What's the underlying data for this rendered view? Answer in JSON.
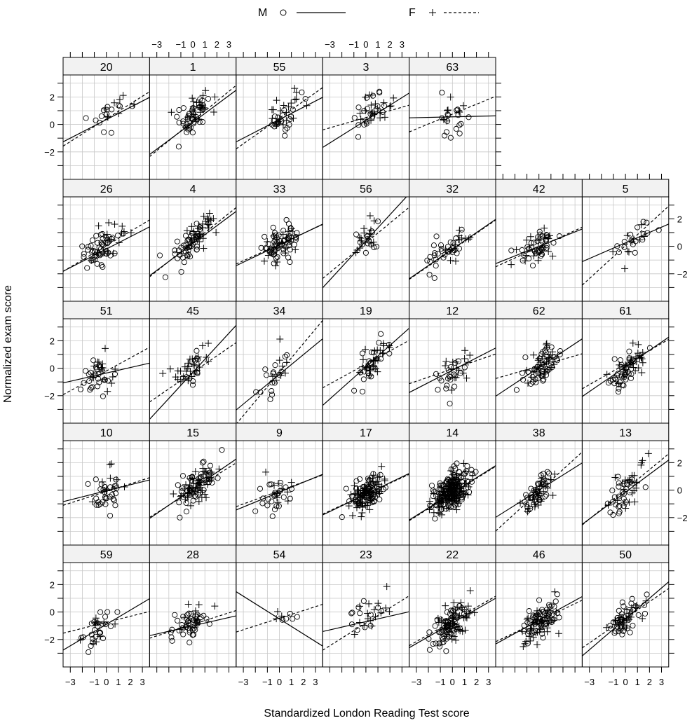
{
  "chart_data": {
    "type": "scatter",
    "layout": "trellis 7 columns x 5 rows; first row has 5 panels",
    "xlabel": "Standardized London Reading Test score",
    "ylabel": "Normalized exam score",
    "xlim": [
      -3.6,
      3.6
    ],
    "ylim": [
      -4.0,
      3.6
    ],
    "x_ticks": [
      -3,
      -1,
      0,
      1,
      2,
      3
    ],
    "x_tick_labels": [
      "−3",
      "−1",
      "0",
      "1",
      "2",
      "3"
    ],
    "y_ticks": [
      -2,
      0,
      2
    ],
    "y_tick_labels": [
      "−2",
      "0",
      "2"
    ],
    "grid": true,
    "legend": {
      "position": "top",
      "items": [
        {
          "label": "M",
          "symbol": "circle",
          "line": "solid"
        },
        {
          "label": "F",
          "symbol": "plus",
          "line": "dashed"
        }
      ]
    },
    "panels": [
      {
        "label": "20",
        "row": 0,
        "col": 0,
        "mLine": [
          0.35,
          0.45
        ],
        "fLine": [
          0.4,
          0.55
        ],
        "mCenter": [
          0.2,
          0.6
        ],
        "fCenter": [
          0.8,
          1.1
        ],
        "mN": 14,
        "fN": 8
      },
      {
        "label": "1",
        "row": 0,
        "col": 1,
        "mLine": [
          0.15,
          0.65
        ],
        "fLine": [
          0.25,
          0.72
        ],
        "mCenter": [
          -0.2,
          0.3
        ],
        "fCenter": [
          0.3,
          0.8
        ],
        "mN": 40,
        "fN": 22
      },
      {
        "label": "55",
        "row": 0,
        "col": 2,
        "mLine": [
          0.35,
          0.45
        ],
        "fLine": [
          0.45,
          0.62
        ],
        "mCenter": [
          0.3,
          0.5
        ],
        "fCenter": [
          0.6,
          1.1
        ],
        "mN": 22,
        "fN": 20
      },
      {
        "label": "3",
        "row": 0,
        "col": 3,
        "mLine": [
          0.3,
          0.55
        ],
        "fLine": [
          0.5,
          0.25
        ],
        "mCenter": [
          0.4,
          0.8
        ],
        "fCenter": [
          0.7,
          1.0
        ],
        "mN": 22,
        "fN": 20
      },
      {
        "label": "63",
        "row": 0,
        "col": 4,
        "mLine": [
          0.55,
          0.02
        ],
        "fLine": [
          0.75,
          0.36
        ],
        "mCenter": [
          0.2,
          0.5
        ],
        "fCenter": [
          0.4,
          0.8
        ],
        "mN": 16,
        "fN": 8
      },
      {
        "label": "26",
        "row": 1,
        "col": 0,
        "mLine": [
          -0.2,
          0.45
        ],
        "fLine": [
          0.05,
          0.52
        ],
        "mCenter": [
          -0.6,
          -0.2
        ],
        "fCenter": [
          0.2,
          0.2
        ],
        "mN": 50,
        "fN": 16
      },
      {
        "label": "4",
        "row": 1,
        "col": 1,
        "mLine": [
          0.2,
          0.65
        ],
        "fLine": [
          0.3,
          0.7
        ],
        "mCenter": [
          -0.2,
          0.2
        ],
        "fCenter": [
          0.4,
          0.8
        ],
        "mN": 50,
        "fN": 28
      },
      {
        "label": "33",
        "row": 1,
        "col": 2,
        "mLine": [
          0.1,
          0.42
        ],
        "fLine": [
          0.15,
          0.4
        ],
        "mCenter": [
          0.0,
          0.1
        ],
        "fCenter": [
          0.1,
          0.2
        ],
        "mN": 60,
        "fN": 20
      },
      {
        "label": "56",
        "row": 1,
        "col": 3,
        "mLine": [
          0.4,
          0.95
        ],
        "fLine": [
          0.25,
          0.72
        ],
        "mCenter": [
          0.2,
          0.3
        ],
        "fCenter": [
          0.2,
          0.6
        ],
        "mN": 14,
        "fN": 16
      },
      {
        "label": "32",
        "row": 1,
        "col": 4,
        "mLine": [
          -0.2,
          0.6
        ],
        "fLine": [
          -0.25,
          0.6
        ],
        "mCenter": [
          -0.6,
          -0.3
        ],
        "fCenter": [
          0.3,
          0.1
        ],
        "mN": 30,
        "fN": 14
      },
      {
        "label": "42",
        "row": 1,
        "col": 5,
        "mLine": [
          0.0,
          0.35
        ],
        "fLine": [
          -0.05,
          0.4
        ],
        "mCenter": [
          0.0,
          0.0
        ],
        "fCenter": [
          0.0,
          0.1
        ],
        "mN": 40,
        "fN": 18
      },
      {
        "label": "5",
        "row": 1,
        "col": 6,
        "mLine": [
          0.25,
          0.38
        ],
        "fLine": [
          0.05,
          0.8
        ],
        "mCenter": [
          0.5,
          0.5
        ],
        "fCenter": [
          0.6,
          0.4
        ],
        "mN": 16,
        "fN": 10
      },
      {
        "label": "51",
        "row": 2,
        "col": 0,
        "mLine": [
          -0.35,
          0.2
        ],
        "fLine": [
          -0.2,
          0.48
        ],
        "mCenter": [
          -0.8,
          -0.6
        ],
        "fCenter": [
          0.0,
          0.2
        ],
        "mN": 26,
        "fN": 16
      },
      {
        "label": "45",
        "row": 2,
        "col": 1,
        "mLine": [
          -0.3,
          0.95
        ],
        "fLine": [
          -0.3,
          0.6
        ],
        "mCenter": [
          -0.3,
          -0.5
        ],
        "fCenter": [
          -0.3,
          0.0
        ],
        "mN": 12,
        "fN": 30
      },
      {
        "label": "34",
        "row": 2,
        "col": 2,
        "mLine": [
          -0.45,
          0.72
        ],
        "fLine": [
          -0.3,
          1.05
        ],
        "mCenter": [
          -0.3,
          -0.5
        ],
        "fCenter": [
          -0.1,
          -0.2
        ],
        "mN": 16,
        "fN": 8
      },
      {
        "label": "19",
        "row": 2,
        "col": 3,
        "mLine": [
          0.1,
          0.78
        ],
        "fLine": [
          0.3,
          0.48
        ],
        "mCenter": [
          0.2,
          0.1
        ],
        "fCenter": [
          0.7,
          0.6
        ],
        "mN": 26,
        "fN": 26
      },
      {
        "label": "12",
        "row": 2,
        "col": 4,
        "mLine": [
          -0.15,
          0.45
        ],
        "fLine": [
          -0.05,
          0.3
        ],
        "mCenter": [
          -0.2,
          -0.4
        ],
        "fCenter": [
          0.4,
          0.4
        ],
        "mN": 20,
        "fN": 16
      },
      {
        "label": "62",
        "row": 2,
        "col": 5,
        "mLine": [
          0.05,
          0.58
        ],
        "fLine": [
          0.15,
          0.25
        ],
        "mCenter": [
          0.2,
          0.0
        ],
        "fCenter": [
          0.4,
          0.4
        ],
        "mN": 50,
        "fN": 26
      },
      {
        "label": "61",
        "row": 2,
        "col": 6,
        "mLine": [
          0.1,
          0.6
        ],
        "fLine": [
          0.3,
          0.5
        ],
        "mCenter": [
          0.0,
          -0.2
        ],
        "fCenter": [
          0.6,
          0.4
        ],
        "mN": 40,
        "fN": 26
      },
      {
        "label": "10",
        "row": 3,
        "col": 0,
        "mLine": [
          -0.05,
          0.22
        ],
        "fLine": [
          -0.1,
          0.28
        ],
        "mCenter": [
          0.1,
          -0.2
        ],
        "fCenter": [
          0.5,
          0.2
        ],
        "mN": 30,
        "fN": 10
      },
      {
        "label": "15",
        "row": 3,
        "col": 1,
        "mLine": [
          0.1,
          0.6
        ],
        "fLine": [
          0.0,
          0.55
        ],
        "mCenter": [
          0.3,
          0.3
        ],
        "fCenter": [
          0.4,
          0.3
        ],
        "mN": 50,
        "fN": 50
      },
      {
        "label": "9",
        "row": 3,
        "col": 2,
        "mLine": [
          -0.15,
          0.36
        ],
        "fLine": [
          -0.05,
          0.32
        ],
        "mCenter": [
          -0.3,
          -0.5
        ],
        "fCenter": [
          0.3,
          0.1
        ],
        "mN": 24,
        "fN": 10
      },
      {
        "label": "17",
        "row": 3,
        "col": 3,
        "mLine": [
          -0.3,
          0.42
        ],
        "fLine": [
          -0.3,
          0.4
        ],
        "mCenter": [
          0.0,
          -0.2
        ],
        "fCenter": [
          0.0,
          -0.2
        ],
        "mN": 70,
        "fN": 70
      },
      {
        "label": "14",
        "row": 3,
        "col": 4,
        "mLine": [
          -0.2,
          0.55
        ],
        "fLine": [
          -0.25,
          0.55
        ],
        "mCenter": [
          0.0,
          0.0
        ],
        "fCenter": [
          0.0,
          -0.1
        ],
        "mN": 140,
        "fN": 100
      },
      {
        "label": "38",
        "row": 3,
        "col": 5,
        "mLine": [
          0.0,
          0.55
        ],
        "fLine": [
          -0.1,
          0.8
        ],
        "mCenter": [
          0.0,
          0.0
        ],
        "fCenter": [
          0.0,
          -0.2
        ],
        "mN": 40,
        "fN": 26
      },
      {
        "label": "13",
        "row": 3,
        "col": 6,
        "mLine": [
          -0.15,
          0.65
        ],
        "fLine": [
          0.05,
          0.72
        ],
        "mCenter": [
          -0.1,
          -0.3
        ],
        "fCenter": [
          0.3,
          0.3
        ],
        "mN": 28,
        "fN": 24
      },
      {
        "label": "59",
        "row": 4,
        "col": 0,
        "mLine": [
          -0.9,
          0.52
        ],
        "fLine": [
          -0.75,
          0.22
        ],
        "mCenter": [
          -0.6,
          -1.1
        ],
        "fCenter": [
          -0.6,
          -0.9
        ],
        "mN": 24,
        "fN": 10
      },
      {
        "label": "28",
        "row": 4,
        "col": 1,
        "mLine": [
          -1.0,
          0.2
        ],
        "fLine": [
          -0.9,
          0.28
        ],
        "mCenter": [
          -0.5,
          -1.0
        ],
        "fCenter": [
          -0.1,
          -0.7
        ],
        "mN": 40,
        "fN": 16
      },
      {
        "label": "54",
        "row": 4,
        "col": 2,
        "mLine": [
          -0.5,
          -0.55
        ],
        "fLine": [
          -0.45,
          0.28
        ],
        "mCenter": [
          0.3,
          -0.5
        ],
        "fCenter": [
          0.3,
          -0.4
        ],
        "mN": 5,
        "fN": 3
      },
      {
        "label": "23",
        "row": 4,
        "col": 3,
        "mLine": [
          -0.7,
          0.2
        ],
        "fLine": [
          -0.8,
          0.55
        ],
        "mCenter": [
          -0.1,
          -0.3
        ],
        "fCenter": [
          0.3,
          -0.3
        ],
        "mN": 12,
        "fN": 16
      },
      {
        "label": "22",
        "row": 4,
        "col": 4,
        "mLine": [
          -0.8,
          0.5
        ],
        "fLine": [
          -0.65,
          0.5
        ],
        "mCenter": [
          -0.3,
          -1.0
        ],
        "fCenter": [
          0.2,
          -0.6
        ],
        "mN": 70,
        "fN": 40
      },
      {
        "label": "46",
        "row": 4,
        "col": 5,
        "mLine": [
          -0.6,
          0.48
        ],
        "fLine": [
          -0.65,
          0.42
        ],
        "mCenter": [
          0.0,
          -0.6
        ],
        "fCenter": [
          0.0,
          -0.8
        ],
        "mN": 60,
        "fN": 40
      },
      {
        "label": "50",
        "row": 4,
        "col": 6,
        "mLine": [
          -0.5,
          0.75
        ],
        "fLine": [
          -0.45,
          0.6
        ],
        "mCenter": [
          0.1,
          -0.4
        ],
        "fCenter": [
          0.2,
          -0.2
        ],
        "mN": 40,
        "fN": 24
      }
    ]
  }
}
